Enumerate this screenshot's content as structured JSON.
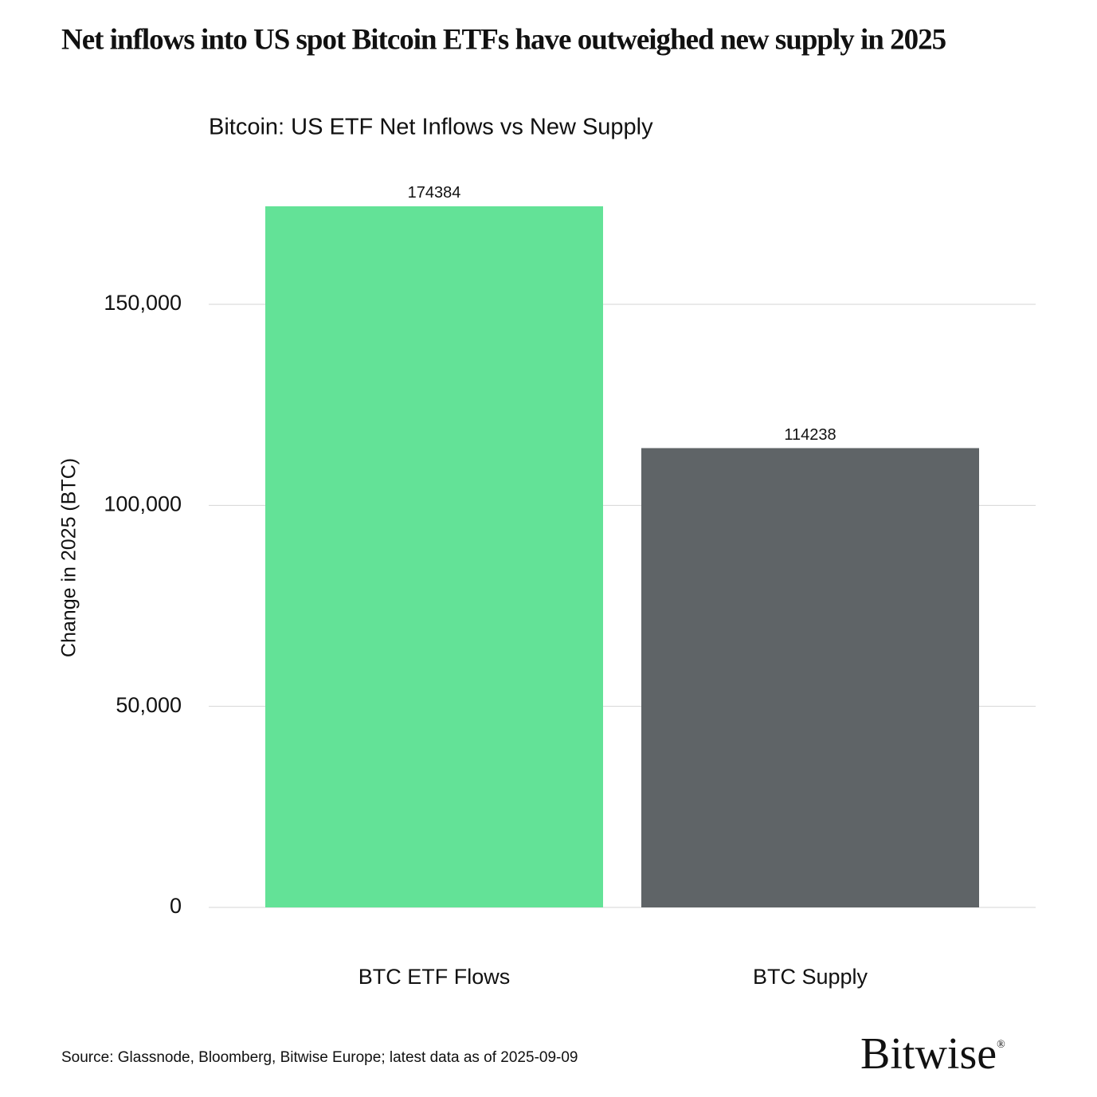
{
  "chart_data": {
    "type": "bar",
    "title": "Net inflows into US spot Bitcoin ETFs have outweighed new supply in 2025",
    "subtitle": "Bitcoin: US ETF Net Inflows vs New Supply",
    "y_label": "Change in 2025 (BTC)",
    "categories": [
      "BTC ETF Flows",
      "BTC Supply"
    ],
    "values": [
      174384,
      114238
    ],
    "colors": [
      "#63e297",
      "#5f6467"
    ],
    "ylim": [
      0,
      180000
    ],
    "yticks": [
      0,
      {
        "value": 50000,
        "label": "50,000"
      },
      {
        "value": 100000,
        "label": "100,000"
      },
      {
        "value": 150000,
        "label": "150,000"
      }
    ],
    "grid": true,
    "source": "Source: Glassnode, Bloomberg, Bitwise Europe; latest data as of 2025-09-09"
  },
  "logo": {
    "text": "Bitwise",
    "mark": "®"
  }
}
